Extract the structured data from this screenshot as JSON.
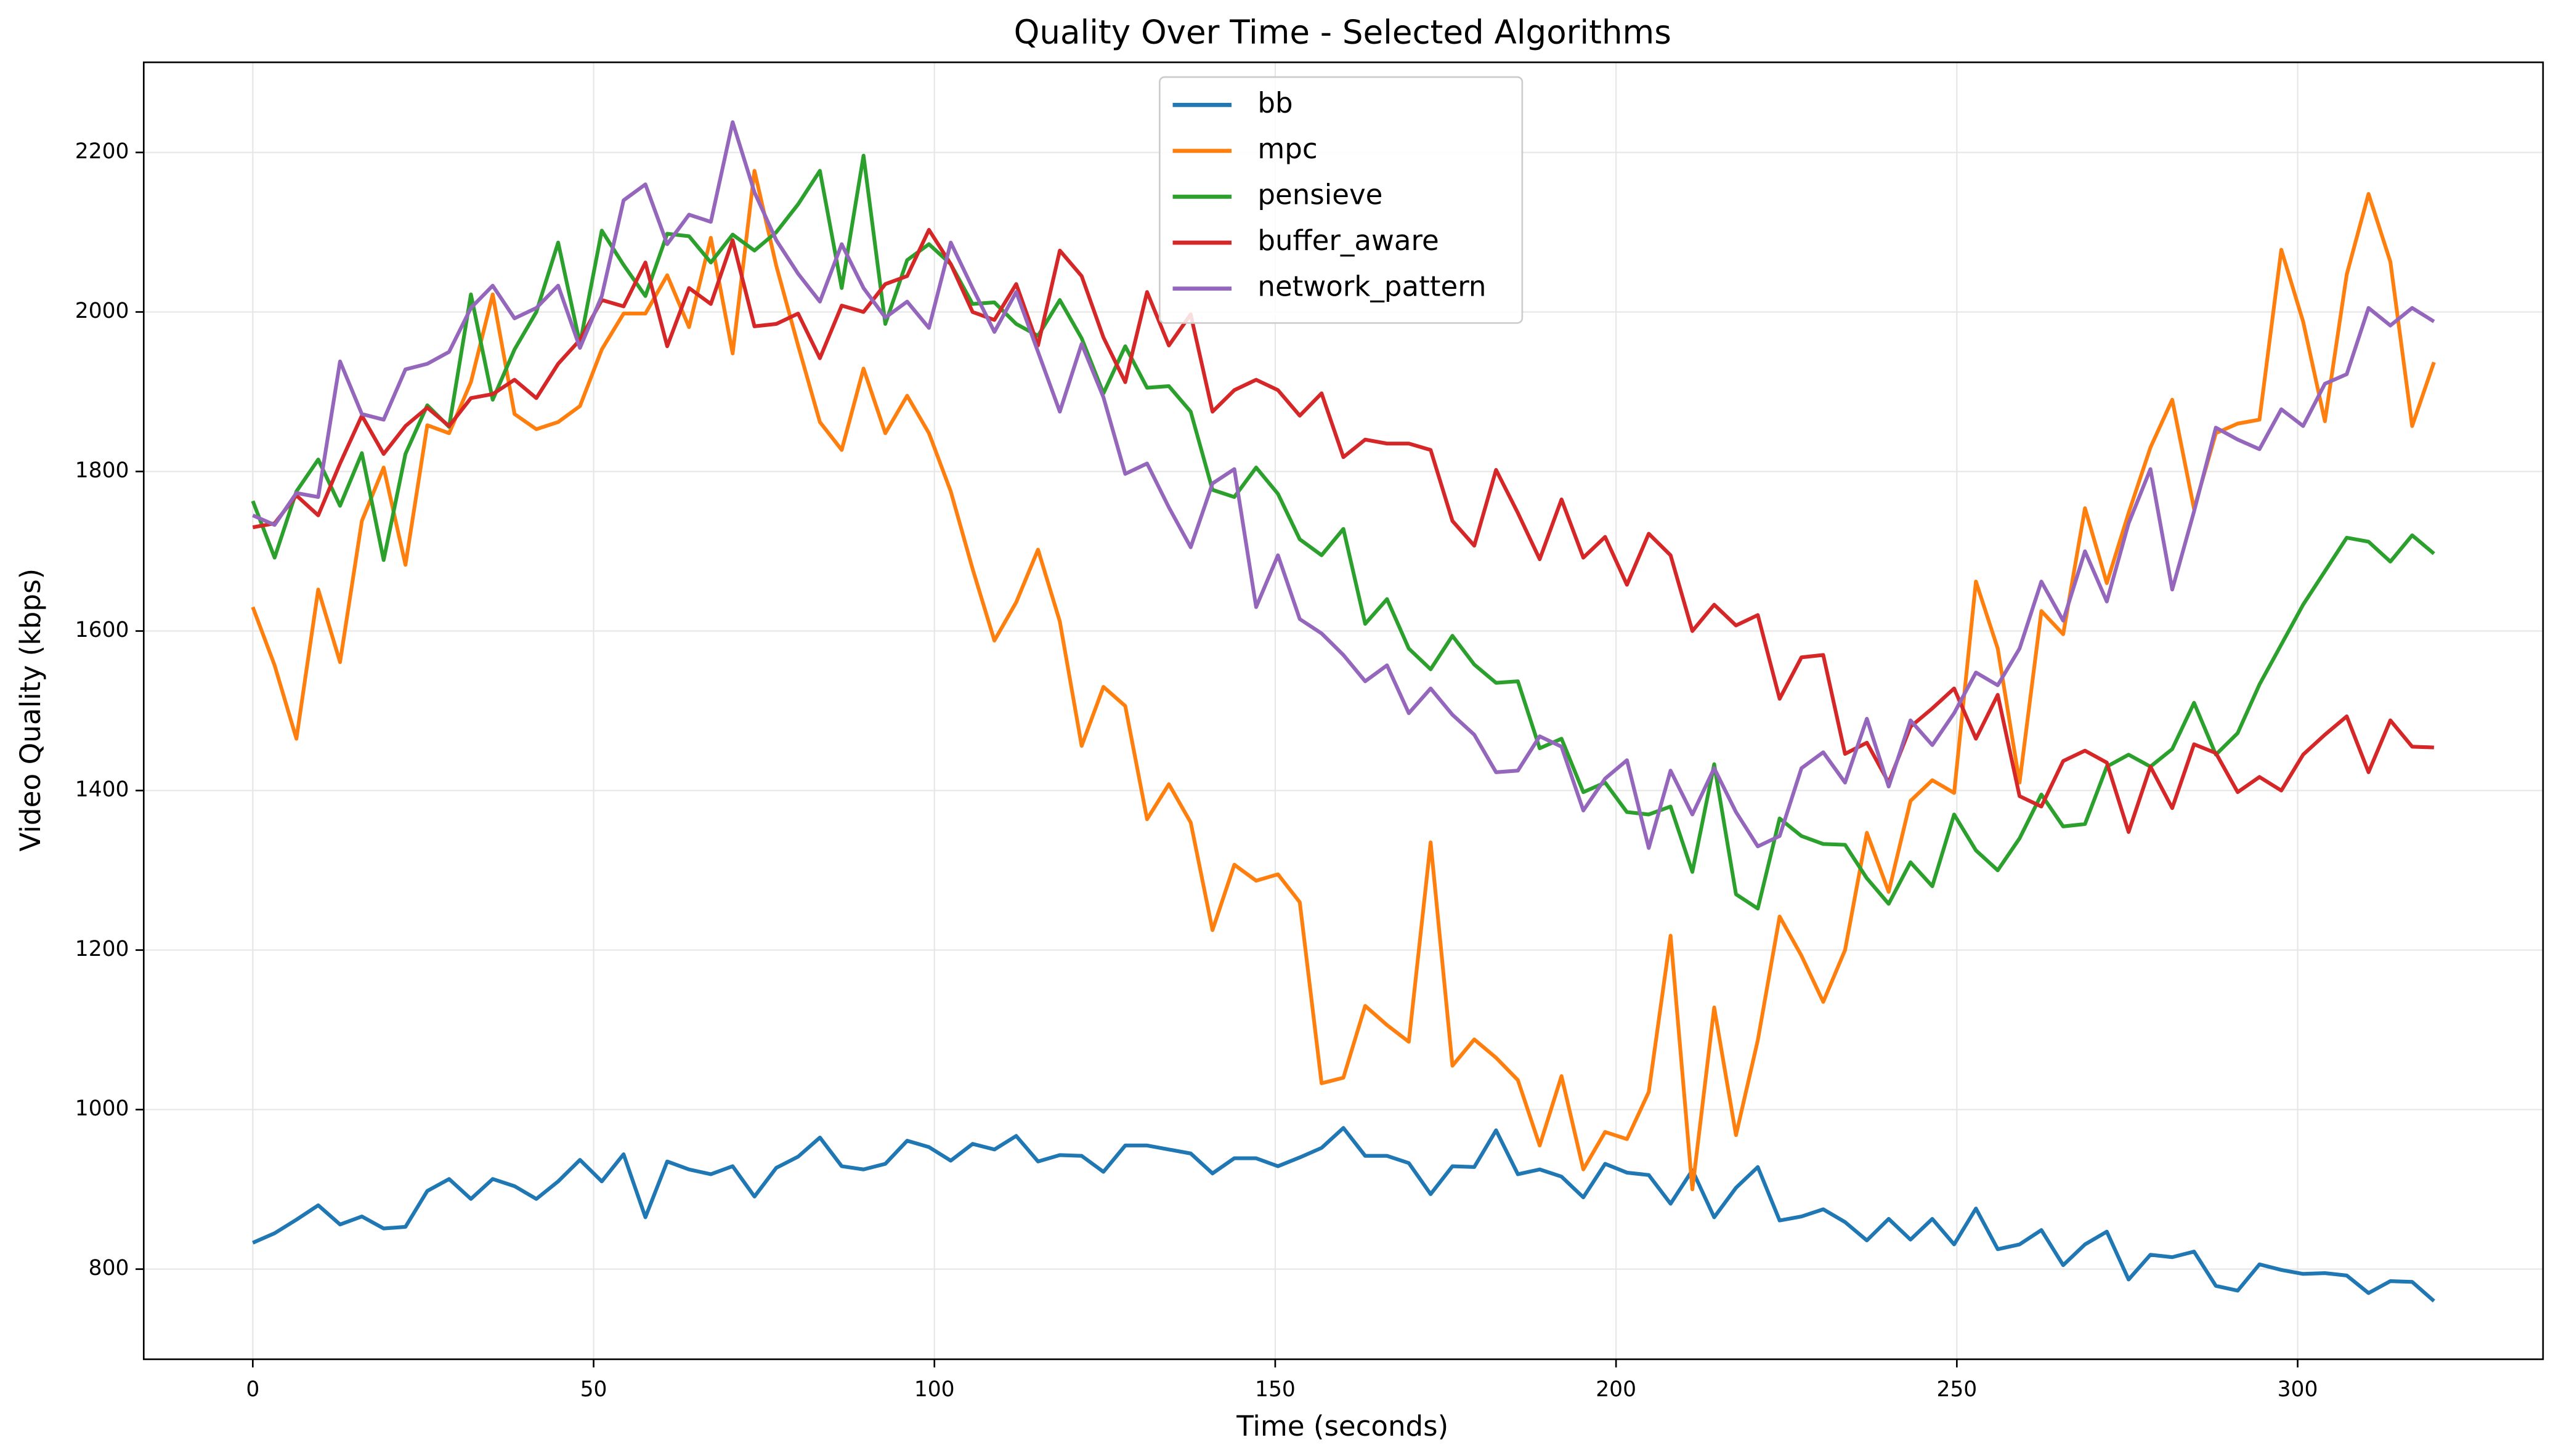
{
  "chart_data": {
    "type": "line",
    "title": "Quality Over Time - Selected Algorithms",
    "x_label": "Time (seconds)",
    "y_label": "Video Quality (kbps)",
    "x": [
      0,
      3.2,
      6.4,
      9.6,
      12.8,
      16,
      19.2,
      22.4,
      25.6,
      28.8,
      32,
      35.2,
      38.4,
      41.6,
      44.8,
      48,
      51.2,
      54.4,
      57.6,
      60.8,
      64,
      67.2,
      70.4,
      73.6,
      76.8,
      80,
      83.2,
      86.4,
      89.6,
      92.8,
      96,
      99.2,
      102.4,
      105.6,
      108.8,
      112,
      115.2,
      118.4,
      121.6,
      124.8,
      128,
      131.2,
      134.4,
      137.6,
      140.8,
      144,
      147.2,
      150.4,
      153.6,
      156.8,
      160,
      163.2,
      166.4,
      169.6,
      172.8,
      176,
      179.2,
      182.4,
      185.6,
      188.8,
      192,
      195.2,
      198.4,
      201.6,
      204.8,
      208,
      211.2,
      214.4,
      217.6,
      220.8,
      224,
      227.2,
      230.4,
      233.6,
      236.8,
      240,
      243.2,
      246.4,
      249.6,
      252.8,
      256,
      259.2,
      262.4,
      265.6,
      268.8,
      272,
      275.2,
      278.4,
      281.6,
      284.8,
      288,
      291.2,
      294.4,
      297.6,
      300.8,
      304,
      307.2,
      310.4,
      313.6,
      316.8,
      320
    ],
    "series": [
      {
        "name": "bb",
        "color": "#1f77b4",
        "values": [
          833,
          845,
          862,
          880,
          856,
          866,
          851,
          853,
          898,
          913,
          888,
          913,
          904,
          888,
          910,
          937,
          910,
          944,
          865,
          935,
          925,
          919,
          929,
          891,
          927,
          941,
          965,
          929,
          925,
          932,
          961,
          953,
          936,
          957,
          950,
          967,
          935,
          943,
          942,
          922,
          955,
          955,
          950,
          945,
          920,
          939,
          939,
          929,
          940,
          952,
          977,
          942,
          942,
          933,
          894,
          929,
          928,
          974,
          919,
          925,
          916,
          890,
          932,
          921,
          918,
          882,
          924,
          865,
          902,
          928,
          861,
          866,
          875,
          859,
          836,
          863,
          837,
          863,
          831,
          876,
          825,
          831,
          849,
          805,
          831,
          847,
          787,
          818,
          815,
          822,
          779,
          773,
          806,
          799,
          794,
          795,
          792,
          770,
          785,
          784,
          760
        ]
      },
      {
        "name": "mpc",
        "color": "#ff7f0e",
        "values": [
          1630,
          1557,
          1465,
          1652,
          1561,
          1738,
          1805,
          1683,
          1858,
          1848,
          1912,
          2022,
          1872,
          1853,
          1862,
          1882,
          1953,
          1998,
          1998,
          2046,
          1981,
          2093,
          1948,
          2177,
          2058,
          1958,
          1862,
          1827,
          1929,
          1848,
          1895,
          1848,
          1775,
          1678,
          1588,
          1636,
          1702,
          1612,
          1456,
          1530,
          1506,
          1364,
          1408,
          1360,
          1225,
          1307,
          1287,
          1295,
          1260,
          1033,
          1040,
          1130,
          1106,
          1085,
          1335,
          1055,
          1088,
          1065,
          1037,
          955,
          1042,
          925,
          972,
          963,
          1022,
          1218,
          900,
          1128,
          968,
          1087,
          1242,
          1193,
          1135,
          1200,
          1347,
          1273,
          1387,
          1413,
          1397,
          1662,
          1578,
          1410,
          1625,
          1596,
          1754,
          1660,
          1748,
          1830,
          1890,
          1753,
          1848,
          1860,
          1865,
          2078,
          1988,
          1863,
          2047,
          2148,
          2063,
          1857,
          1937
        ]
      },
      {
        "name": "pensieve",
        "color": "#2ca02c",
        "values": [
          1763,
          1692,
          1775,
          1815,
          1757,
          1823,
          1689,
          1822,
          1883,
          1856,
          2022,
          1890,
          1953,
          2000,
          2087,
          1960,
          2102,
          2059,
          2020,
          2098,
          2095,
          2062,
          2097,
          2077,
          2100,
          2135,
          2177,
          2030,
          2196,
          1985,
          2065,
          2085,
          2060,
          2010,
          2012,
          1985,
          1970,
          2015,
          1967,
          1898,
          1957,
          1905,
          1907,
          1875,
          1777,
          1768,
          1805,
          1772,
          1715,
          1695,
          1728,
          1609,
          1640,
          1578,
          1552,
          1594,
          1558,
          1535,
          1537,
          1453,
          1465,
          1398,
          1410,
          1373,
          1370,
          1380,
          1298,
          1433,
          1270,
          1252,
          1365,
          1343,
          1333,
          1332,
          1290,
          1258,
          1310,
          1280,
          1370,
          1325,
          1300,
          1340,
          1395,
          1355,
          1358,
          1430,
          1445,
          1430,
          1452,
          1510,
          1445,
          1472,
          1533,
          1583,
          1633,
          1675,
          1717,
          1712,
          1687,
          1720,
          1697
        ]
      },
      {
        "name": "buffer_aware",
        "color": "#d62728",
        "values": [
          1730,
          1735,
          1770,
          1745,
          1810,
          1870,
          1822,
          1857,
          1880,
          1857,
          1892,
          1897,
          1915,
          1892,
          1935,
          1965,
          2015,
          2007,
          2062,
          1957,
          2030,
          2010,
          2090,
          1982,
          1985,
          1998,
          1942,
          2008,
          2000,
          2035,
          2045,
          2103,
          2060,
          2000,
          1990,
          2035,
          1958,
          2077,
          2045,
          1968,
          1912,
          2025,
          1958,
          1997,
          1875,
          1902,
          1915,
          1902,
          1870,
          1898,
          1818,
          1840,
          1835,
          1835,
          1827,
          1738,
          1707,
          1802,
          1748,
          1690,
          1765,
          1692,
          1718,
          1658,
          1722,
          1695,
          1600,
          1633,
          1607,
          1620,
          1515,
          1567,
          1570,
          1446,
          1460,
          1410,
          1480,
          1503,
          1528,
          1465,
          1520,
          1393,
          1380,
          1437,
          1450,
          1435,
          1348,
          1430,
          1378,
          1458,
          1447,
          1398,
          1417,
          1400,
          1445,
          1470,
          1493,
          1423,
          1488,
          1455,
          1454
        ]
      },
      {
        "name": "network_pattern",
        "color": "#9467bd",
        "values": [
          1745,
          1733,
          1773,
          1768,
          1938,
          1872,
          1865,
          1928,
          1935,
          1950,
          2005,
          2033,
          1992,
          2005,
          2033,
          1955,
          2020,
          2140,
          2160,
          2085,
          2122,
          2113,
          2238,
          2150,
          2090,
          2048,
          2013,
          2085,
          2030,
          1993,
          2013,
          1980,
          2087,
          2030,
          1975,
          2025,
          1950,
          1875,
          1960,
          1893,
          1797,
          1810,
          1755,
          1705,
          1785,
          1803,
          1630,
          1695,
          1615,
          1597,
          1570,
          1537,
          1557,
          1497,
          1528,
          1495,
          1470,
          1423,
          1425,
          1468,
          1455,
          1375,
          1415,
          1438,
          1328,
          1425,
          1370,
          1428,
          1373,
          1330,
          1343,
          1428,
          1448,
          1410,
          1490,
          1405,
          1488,
          1457,
          1497,
          1548,
          1532,
          1578,
          1662,
          1613,
          1700,
          1637,
          1735,
          1803,
          1652,
          1750,
          1855,
          1840,
          1828,
          1878,
          1857,
          1910,
          1922,
          2005,
          1983,
          2005,
          1988
        ]
      }
    ],
    "xlim": [
      -16,
      336
    ],
    "xticks": [
      0,
      50,
      100,
      150,
      200,
      250,
      300
    ],
    "ylim": [
      687,
      2313
    ],
    "yticks": [
      800,
      1000,
      1200,
      1400,
      1600,
      1800,
      2000,
      2200
    ],
    "grid": true,
    "legend": "upper center"
  }
}
